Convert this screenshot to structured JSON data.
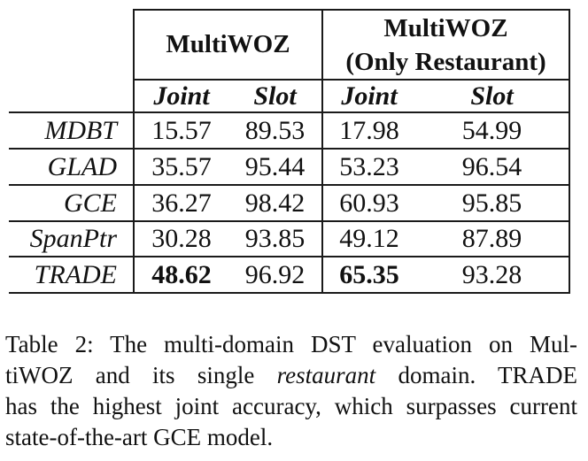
{
  "table": {
    "group_headers": [
      "MultiWOZ",
      "MultiWOZ",
      "(Only Restaurant)"
    ],
    "sub_headers": [
      "Joint",
      "Slot",
      "Joint",
      "Slot"
    ],
    "rows": [
      {
        "model": "MDBT",
        "mw_joint": "15.57",
        "mw_slot": "89.53",
        "r_joint": "17.98",
        "r_slot": "54.99"
      },
      {
        "model": "GLAD",
        "mw_joint": "35.57",
        "mw_slot": "95.44",
        "r_joint": "53.23",
        "r_slot": "96.54"
      },
      {
        "model": "GCE",
        "mw_joint": "36.27",
        "mw_slot": "98.42",
        "r_joint": "60.93",
        "r_slot": "95.85"
      },
      {
        "model": "SpanPtr",
        "mw_joint": "30.28",
        "mw_slot": "93.85",
        "r_joint": "49.12",
        "r_slot": "87.89"
      },
      {
        "model": "TRADE",
        "mw_joint": "48.62",
        "mw_slot": "96.92",
        "r_joint": "65.35",
        "r_slot": "93.28"
      }
    ]
  },
  "caption": {
    "l1": "Table 2: The multi-domain DST evaluation on Mul-",
    "l2a": "tiWOZ and its single ",
    "l2b": "restaurant",
    "l2c": " domain.  TRADE",
    "l3": "has the highest joint accuracy, which surpasses current",
    "l4": "state-of-the-art GCE model."
  }
}
